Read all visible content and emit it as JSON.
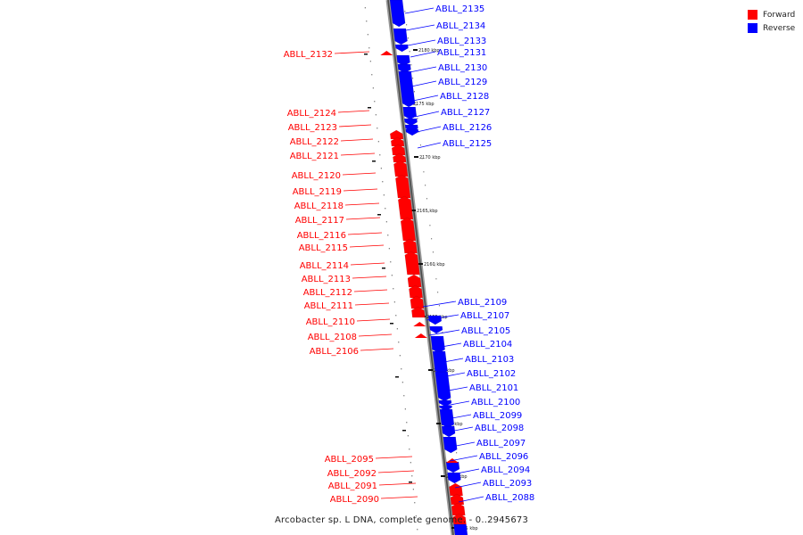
{
  "legend": {
    "forward_label": "Forward",
    "reverse_label": "Reverse",
    "forward_color": "#ff0000",
    "reverse_color": "#0000ff"
  },
  "caption": "Arcobacter sp. L DNA, complete genome. - 0..2945673",
  "tick_labels": [
    "2180 kbp",
    "2175 kbp",
    "2170 kbp",
    "2165 kbp",
    "2160 kbp",
    "2155 kbp",
    "2150 kbp",
    "2145 kbp",
    "2140 kbp",
    "2135 kbp"
  ],
  "reverse_genes": [
    "ABLL_2135",
    "ABLL_2134",
    "ABLL_2133",
    "ABLL_2131",
    "ABLL_2130",
    "ABLL_2129",
    "ABLL_2128",
    "ABLL_2127",
    "ABLL_2126",
    "ABLL_2125",
    "ABLL_2109",
    "ABLL_2107",
    "ABLL_2105",
    "ABLL_2104",
    "ABLL_2103",
    "ABLL_2102",
    "ABLL_2101",
    "ABLL_2100",
    "ABLL_2099",
    "ABLL_2098",
    "ABLL_2097",
    "ABLL_2096",
    "ABLL_2094",
    "ABLL_2093",
    "ABLL_2088"
  ],
  "forward_genes": [
    "ABLL_2132",
    "ABLL_2124",
    "ABLL_2123",
    "ABLL_2122",
    "ABLL_2121",
    "ABLL_2120",
    "ABLL_2119",
    "ABLL_2118",
    "ABLL_2117",
    "ABLL_2116",
    "ABLL_2115",
    "ABLL_2114",
    "ABLL_2113",
    "ABLL_2112",
    "ABLL_2111",
    "ABLL_2110",
    "ABLL_2108",
    "ABLL_2106",
    "ABLL_2095",
    "ABLL_2092",
    "ABLL_2091",
    "ABLL_2090"
  ]
}
